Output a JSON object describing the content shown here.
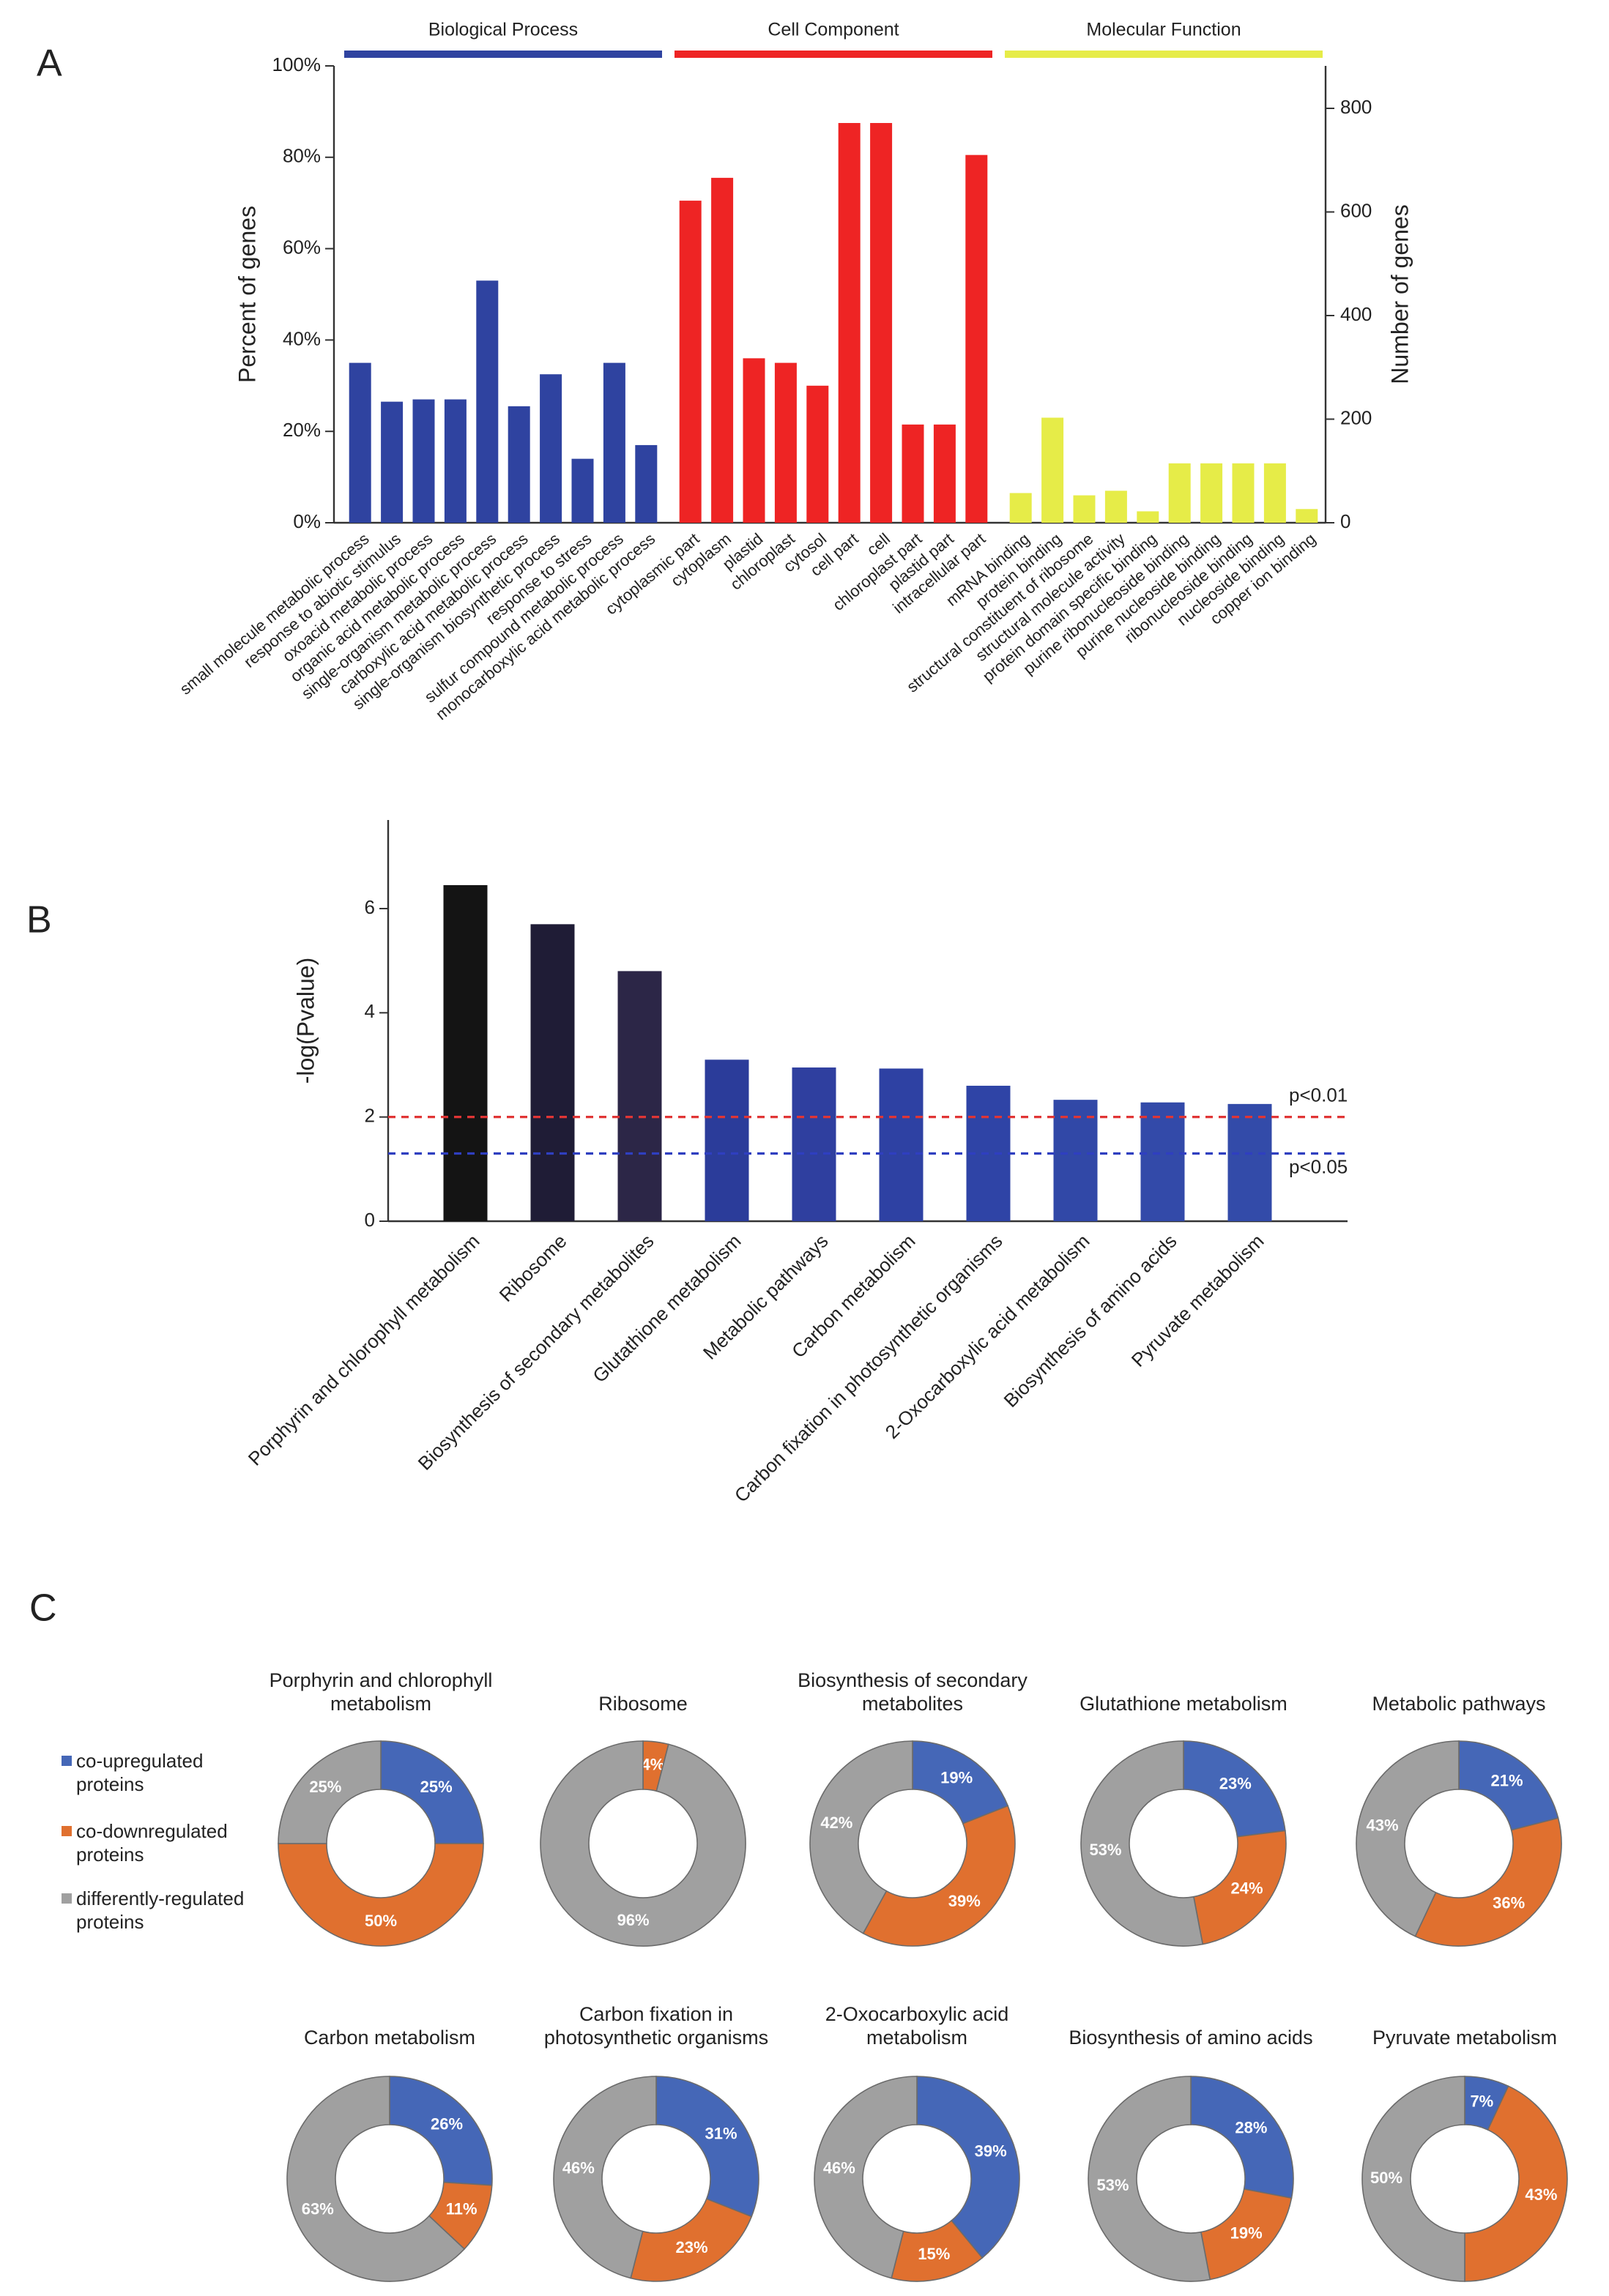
{
  "chart_data": [
    {
      "label": "A",
      "type": "bar",
      "ylabel": "Percent of genes",
      "y2label": "Number of genes",
      "ylim": [
        0,
        100
      ],
      "yticks": [
        {
          "value": 0,
          "label": "0%"
        },
        {
          "value": 20,
          "label": "20%"
        },
        {
          "value": 40,
          "label": "40%"
        },
        {
          "value": 60,
          "label": "60%"
        },
        {
          "value": 80,
          "label": "80%"
        },
        {
          "value": 100,
          "label": "100%"
        }
      ],
      "y2lim": [
        0,
        882
      ],
      "y2ticks": [
        0,
        200,
        400,
        600,
        800
      ],
      "series": [
        {
          "name": "Biological Process",
          "color": "#2f43a0",
          "categories": [
            "small molecule metabolic process",
            "response to abiotic stimulus",
            "oxoacid metabolic process",
            "organic acid metabolic process",
            "single-organism metabolic process",
            "carboxylic acid metabolic process",
            "single-organism biosynthetic process",
            "response to stress",
            "sulfur compound metabolic process",
            "monocarboxylic acid metabolic process"
          ],
          "values": [
            35,
            26.5,
            27,
            27,
            53,
            25.5,
            32.5,
            14,
            35,
            17
          ]
        },
        {
          "name": "Cell Component",
          "color": "#ee2424",
          "categories": [
            "cytoplasmic part",
            "cytoplasm",
            "plastid",
            "chloroplast",
            "cytosol",
            "cell part",
            "cell",
            "chloroplast part",
            "plastid part",
            "intracellular part"
          ],
          "values": [
            70.5,
            75.5,
            36,
            35,
            30,
            87.5,
            87.5,
            21.5,
            21.5,
            80.5
          ]
        },
        {
          "name": "Molecular Function",
          "color": "#e6ec48",
          "categories": [
            "mRNA binding",
            "protein binding",
            "structural constituent of ribosome",
            "structural molecule activity",
            "protein domain specific binding",
            "purine ribonucleoside binding",
            "purine nucleoside binding",
            "ribonucleoside binding",
            "nucleoside binding",
            "copper ion binding"
          ],
          "values": [
            6.5,
            23,
            6,
            7,
            2.5,
            13,
            13,
            13,
            13,
            3
          ]
        }
      ]
    },
    {
      "label": "B",
      "type": "bar",
      "ylabel": "-log(Pvalue)",
      "ylim": [
        0,
        7.7
      ],
      "yticks": [
        0,
        2,
        4,
        6
      ],
      "categories": [
        "Porphyrin and chlorophyll metabolism",
        "Ribosome",
        "Biosynthesis of secondary metabolites",
        "Glutathione metabolism",
        "Metabolic pathways",
        "Carbon metabolism",
        "Carbon fixation in photosynthetic organisms",
        "2-Oxocarboxylic acid metabolism",
        "Biosynthesis of amino acids",
        "Pyruvate metabolism"
      ],
      "values": [
        6.45,
        5.7,
        4.8,
        3.1,
        2.95,
        2.93,
        2.6,
        2.33,
        2.28,
        2.25
      ],
      "colors": [
        "#141414",
        "#1f1c36",
        "#2c2647",
        "#2b3c9a",
        "#2f3f9f",
        "#2e41a3",
        "#2f44a6",
        "#3148a7",
        "#334aa9",
        "#334ba9"
      ],
      "thresholds": [
        {
          "value": 2,
          "label": "p<0.01",
          "color": "#e03535"
        },
        {
          "value": 1.3,
          "label": "p<0.05",
          "color": "#2f3fc0"
        }
      ]
    },
    {
      "label": "C",
      "type": "donut",
      "series": [
        {
          "name": "co-upregulated proteins",
          "color": "#4567b7"
        },
        {
          "name": "co-downregulated proteins",
          "color": "#e0702f"
        },
        {
          "name": "differently-regulated proteins",
          "color": "#a0a0a0"
        }
      ],
      "charts": [
        {
          "title": "Porphyrin and chlorophyll metabolism",
          "values": [
            25,
            50,
            25
          ],
          "value_labels": [
            "25%",
            "50%",
            "25%"
          ]
        },
        {
          "title": "Ribosome",
          "values": [
            0,
            4,
            96
          ],
          "value_labels": [
            null,
            "4%",
            "96%"
          ]
        },
        {
          "title": "Biosynthesis of secondary metabolites",
          "values": [
            19,
            39,
            42
          ],
          "value_labels": [
            "19%",
            "39%",
            "42%"
          ]
        },
        {
          "title": "Glutathione metabolism",
          "values": [
            23,
            24,
            53
          ],
          "value_labels": [
            "23%",
            "24%",
            "53%"
          ]
        },
        {
          "title": "Metabolic pathways",
          "values": [
            21,
            36,
            43
          ],
          "value_labels": [
            "21%",
            "36%",
            "43%"
          ]
        },
        {
          "title": "Carbon metabolism",
          "values": [
            26,
            11,
            63
          ],
          "value_labels": [
            "26%",
            "11%",
            "63%"
          ]
        },
        {
          "title": "Carbon fixation in photosynthetic organisms",
          "values": [
            31,
            23,
            46
          ],
          "value_labels": [
            "31%",
            "23%",
            "46%"
          ]
        },
        {
          "title": "2-Oxocarboxylic acid metabolism",
          "values": [
            39,
            15,
            46
          ],
          "value_labels": [
            "39%",
            "15%",
            "46%"
          ]
        },
        {
          "title": "Biosynthesis of amino acids",
          "values": [
            28,
            19,
            53
          ],
          "value_labels": [
            "28%",
            "19%",
            "53%"
          ]
        },
        {
          "title": "Pyruvate metabolism",
          "values": [
            7,
            43,
            50
          ],
          "value_labels": [
            "7%",
            "43%",
            "50%"
          ]
        }
      ]
    }
  ]
}
